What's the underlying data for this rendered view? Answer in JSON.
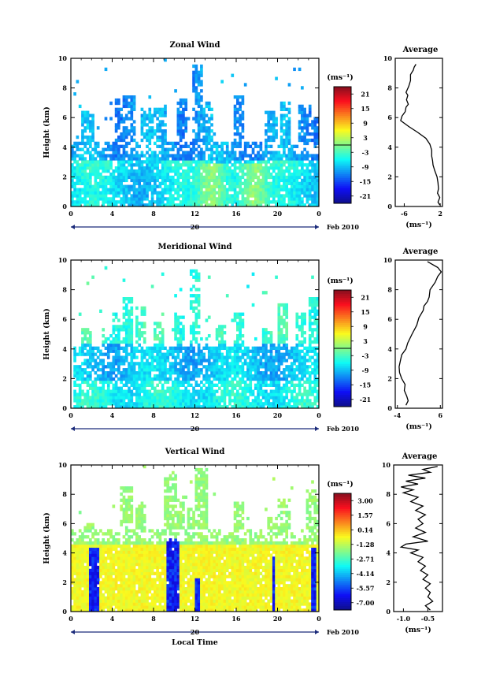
{
  "chart_data": [
    {
      "type": "heatmap",
      "title": "Zonal Wind",
      "ylabel": "Height (km)",
      "xlabel": "",
      "x_ticks": [
        "0",
        "4",
        "8",
        "12",
        "16",
        "20",
        "0"
      ],
      "y_ticks": [
        "0",
        "2",
        "4",
        "6",
        "8",
        "10"
      ],
      "xlim": [
        0,
        24
      ],
      "ylim": [
        0,
        10
      ],
      "date_label": "20",
      "month_label": "Feb 2010",
      "colorbar": {
        "unit": "(ms⁻¹)",
        "ticks": [
          "21",
          "15",
          "9",
          "3",
          "-3",
          "-9",
          "-15",
          "-21"
        ],
        "range": [
          -24,
          24
        ]
      },
      "average": {
        "title": "Average",
        "unit": "(ms⁻¹)",
        "x_ticks": [
          "-6",
          "2"
        ],
        "xlim": [
          -8,
          2.5
        ],
        "profile": [
          [
            -3.4,
            9.6
          ],
          [
            -3.8,
            9.4
          ],
          [
            -4.0,
            9.2
          ],
          [
            -4.6,
            8.9
          ],
          [
            -4.6,
            8.5
          ],
          [
            -5.0,
            8.1
          ],
          [
            -5.6,
            7.7
          ],
          [
            -5.2,
            7.5
          ],
          [
            -5.5,
            7.2
          ],
          [
            -5.1,
            6.9
          ],
          [
            -5.6,
            6.7
          ],
          [
            -5.8,
            6.4
          ],
          [
            -6.5,
            6.1
          ],
          [
            -6.8,
            5.8
          ],
          [
            -5.0,
            5.4
          ],
          [
            -3.0,
            5.0
          ],
          [
            -1.2,
            4.6
          ],
          [
            -0.3,
            4.2
          ],
          [
            0.1,
            3.8
          ],
          [
            0.1,
            3.4
          ],
          [
            0.3,
            3.1
          ],
          [
            0.4,
            2.8
          ],
          [
            0.8,
            2.4
          ],
          [
            1.3,
            2.0
          ],
          [
            1.5,
            1.6
          ],
          [
            1.6,
            1.2
          ],
          [
            1.4,
            0.9
          ],
          [
            1.9,
            0.6
          ],
          [
            1.5,
            0.3
          ],
          [
            1.9,
            0.1
          ]
        ]
      }
    },
    {
      "type": "heatmap",
      "title": "Meridional Wind",
      "ylabel": "Height (km)",
      "xlabel": "",
      "x_ticks": [
        "0",
        "4",
        "8",
        "12",
        "16",
        "20",
        "0"
      ],
      "y_ticks": [
        "0",
        "2",
        "4",
        "6",
        "8",
        "10"
      ],
      "xlim": [
        0,
        24
      ],
      "ylim": [
        0,
        10
      ],
      "date_label": "20",
      "month_label": "Feb 2010",
      "colorbar": {
        "unit": "(ms⁻¹)",
        "ticks": [
          "21",
          "15",
          "9",
          "3",
          "-3",
          "-9",
          "-15",
          "-21"
        ],
        "range": [
          -24,
          24
        ]
      },
      "average": {
        "title": "Average",
        "unit": "(ms⁻¹)",
        "x_ticks": [
          "-4",
          "6"
        ],
        "xlim": [
          -4.5,
          6.5
        ],
        "profile": [
          [
            3.0,
            9.9
          ],
          [
            5.4,
            9.5
          ],
          [
            6.2,
            9.2
          ],
          [
            5.4,
            8.9
          ],
          [
            4.8,
            8.5
          ],
          [
            3.6,
            8.0
          ],
          [
            3.4,
            7.5
          ],
          [
            3.0,
            7.2
          ],
          [
            2.2,
            6.9
          ],
          [
            2.0,
            6.6
          ],
          [
            1.0,
            6.1
          ],
          [
            0.5,
            5.6
          ],
          [
            -0.6,
            5.0
          ],
          [
            -1.6,
            4.4
          ],
          [
            -2.0,
            4.0
          ],
          [
            -3.0,
            3.6
          ],
          [
            -3.3,
            3.2
          ],
          [
            -3.6,
            2.8
          ],
          [
            -3.5,
            2.4
          ],
          [
            -3.0,
            2.0
          ],
          [
            -2.2,
            1.6
          ],
          [
            -2.4,
            1.2
          ],
          [
            -1.8,
            0.8
          ],
          [
            -1.5,
            0.5
          ],
          [
            -2.0,
            0.2
          ]
        ]
      }
    },
    {
      "type": "heatmap",
      "title": "Vertical Wind",
      "ylabel": "Height (km)",
      "xlabel": "Local Time",
      "x_ticks": [
        "0",
        "4",
        "8",
        "12",
        "16",
        "20",
        "0"
      ],
      "y_ticks": [
        "0",
        "2",
        "4",
        "6",
        "8",
        "10"
      ],
      "xlim": [
        0,
        24
      ],
      "ylim": [
        0,
        10
      ],
      "date_label": "20",
      "month_label": "Feb 2010",
      "colorbar": {
        "unit": "(ms⁻¹)",
        "ticks": [
          "3.00",
          "1.57",
          "0.14",
          "-1.28",
          "-2.71",
          "-4.14",
          "-5.57",
          "-7.00"
        ],
        "range": [
          -7.7,
          3.7
        ]
      },
      "average": {
        "title": "Average",
        "unit": "(ms⁻¹)",
        "x_ticks": [
          "-1.0",
          "-0.5"
        ],
        "xlim": [
          -1.2,
          -0.2
        ],
        "profile": [
          [
            -0.3,
            9.9
          ],
          [
            -0.6,
            9.7
          ],
          [
            -0.45,
            9.5
          ],
          [
            -0.9,
            9.3
          ],
          [
            -0.55,
            9.1
          ],
          [
            -0.95,
            8.9
          ],
          [
            -0.7,
            8.7
          ],
          [
            -1.05,
            8.5
          ],
          [
            -0.8,
            8.3
          ],
          [
            -1.0,
            8.1
          ],
          [
            -0.7,
            7.8
          ],
          [
            -0.85,
            7.5
          ],
          [
            -0.6,
            7.2
          ],
          [
            -0.75,
            6.9
          ],
          [
            -0.55,
            6.6
          ],
          [
            -0.7,
            6.3
          ],
          [
            -0.6,
            6.0
          ],
          [
            -0.75,
            5.7
          ],
          [
            -0.55,
            5.4
          ],
          [
            -0.8,
            5.1
          ],
          [
            -0.5,
            4.8
          ],
          [
            -0.95,
            4.6
          ],
          [
            -1.05,
            4.4
          ],
          [
            -0.7,
            4.2
          ],
          [
            -0.85,
            4.0
          ],
          [
            -0.6,
            3.7
          ],
          [
            -0.7,
            3.4
          ],
          [
            -0.55,
            3.1
          ],
          [
            -0.65,
            2.8
          ],
          [
            -0.5,
            2.5
          ],
          [
            -0.6,
            2.2
          ],
          [
            -0.45,
            1.9
          ],
          [
            -0.55,
            1.6
          ],
          [
            -0.45,
            1.3
          ],
          [
            -0.5,
            1.0
          ],
          [
            -0.4,
            0.7
          ],
          [
            -0.55,
            0.4
          ],
          [
            -0.45,
            0.1
          ]
        ]
      }
    }
  ]
}
